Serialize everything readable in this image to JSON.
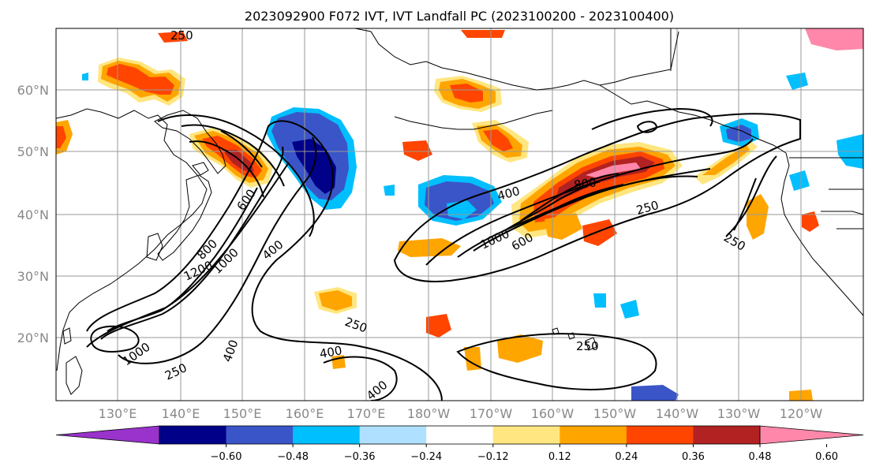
{
  "title": "2023092900 F072 IVT, IVT Landfall PC (2023100200 - 2023100400)",
  "lat_labels": [
    "60°N",
    "50°N",
    "40°N",
    "30°N",
    "20°N"
  ],
  "lon_labels": [
    "130°E",
    "140°E",
    "150°E",
    "160°E",
    "170°E",
    "180°W",
    "170°W",
    "160°W",
    "150°W",
    "140°W",
    "130°W",
    "120°W"
  ],
  "colorbar": {
    "colors": [
      "#9933cc",
      "#000088",
      "#3a55c8",
      "#00bfff",
      "#b0e0ff",
      "#ffffff",
      "#ffe680",
      "#ffa500",
      "#ff4500",
      "#b22222",
      "#ff88aa"
    ],
    "ticks": [
      "−0.60",
      "−0.48",
      "−0.36",
      "−0.24",
      "−0.12",
      "0.12",
      "0.24",
      "0.36",
      "0.48",
      "0.60"
    ]
  },
  "contour_labels": [
    "250",
    "400",
    "600",
    "800",
    "1000",
    "1200",
    "400",
    "600",
    "800",
    "1000",
    "250",
    "250",
    "250",
    "400",
    "250",
    "400",
    "400",
    "1000",
    "250",
    "400"
  ]
}
